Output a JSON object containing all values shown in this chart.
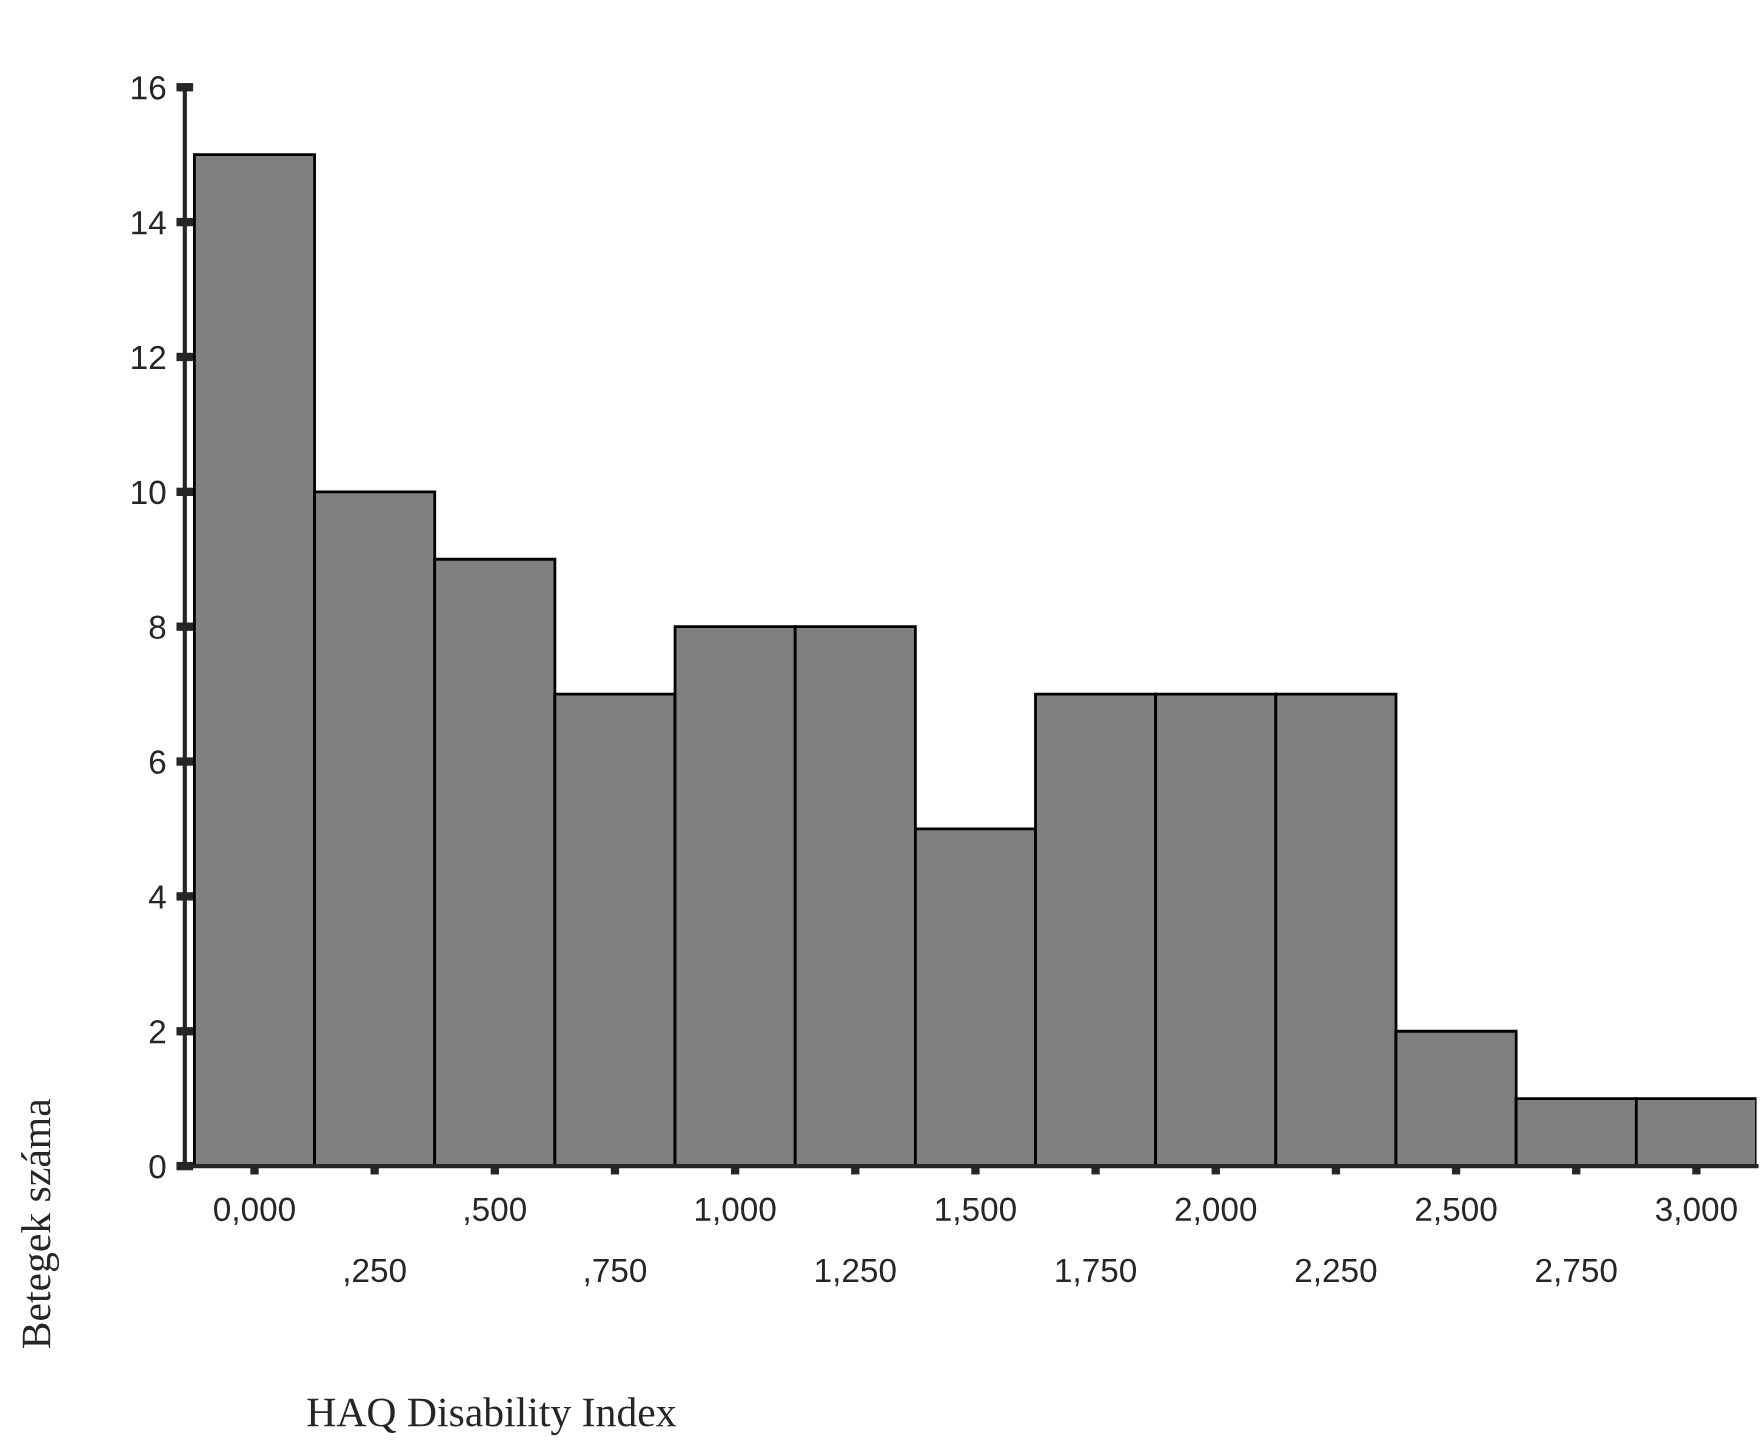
{
  "chart_data": {
    "type": "bar",
    "xlabel": "HAQ Disability Index",
    "ylabel": "Betegek száma",
    "categories": [
      "0,000",
      ",250",
      ",500",
      ",750",
      "1,000",
      "1,250",
      "1,500",
      "1,750",
      "2,000",
      "2,250",
      "2,500",
      "2,750",
      "3,000"
    ],
    "values": [
      15,
      10,
      9,
      7,
      8,
      8,
      5,
      7,
      7,
      7,
      2,
      1,
      1
    ],
    "color": "#808080",
    "ylim": [
      0,
      16
    ],
    "yticks": [
      0,
      2,
      4,
      6,
      8,
      10,
      12,
      14,
      16
    ],
    "grid": false
  }
}
